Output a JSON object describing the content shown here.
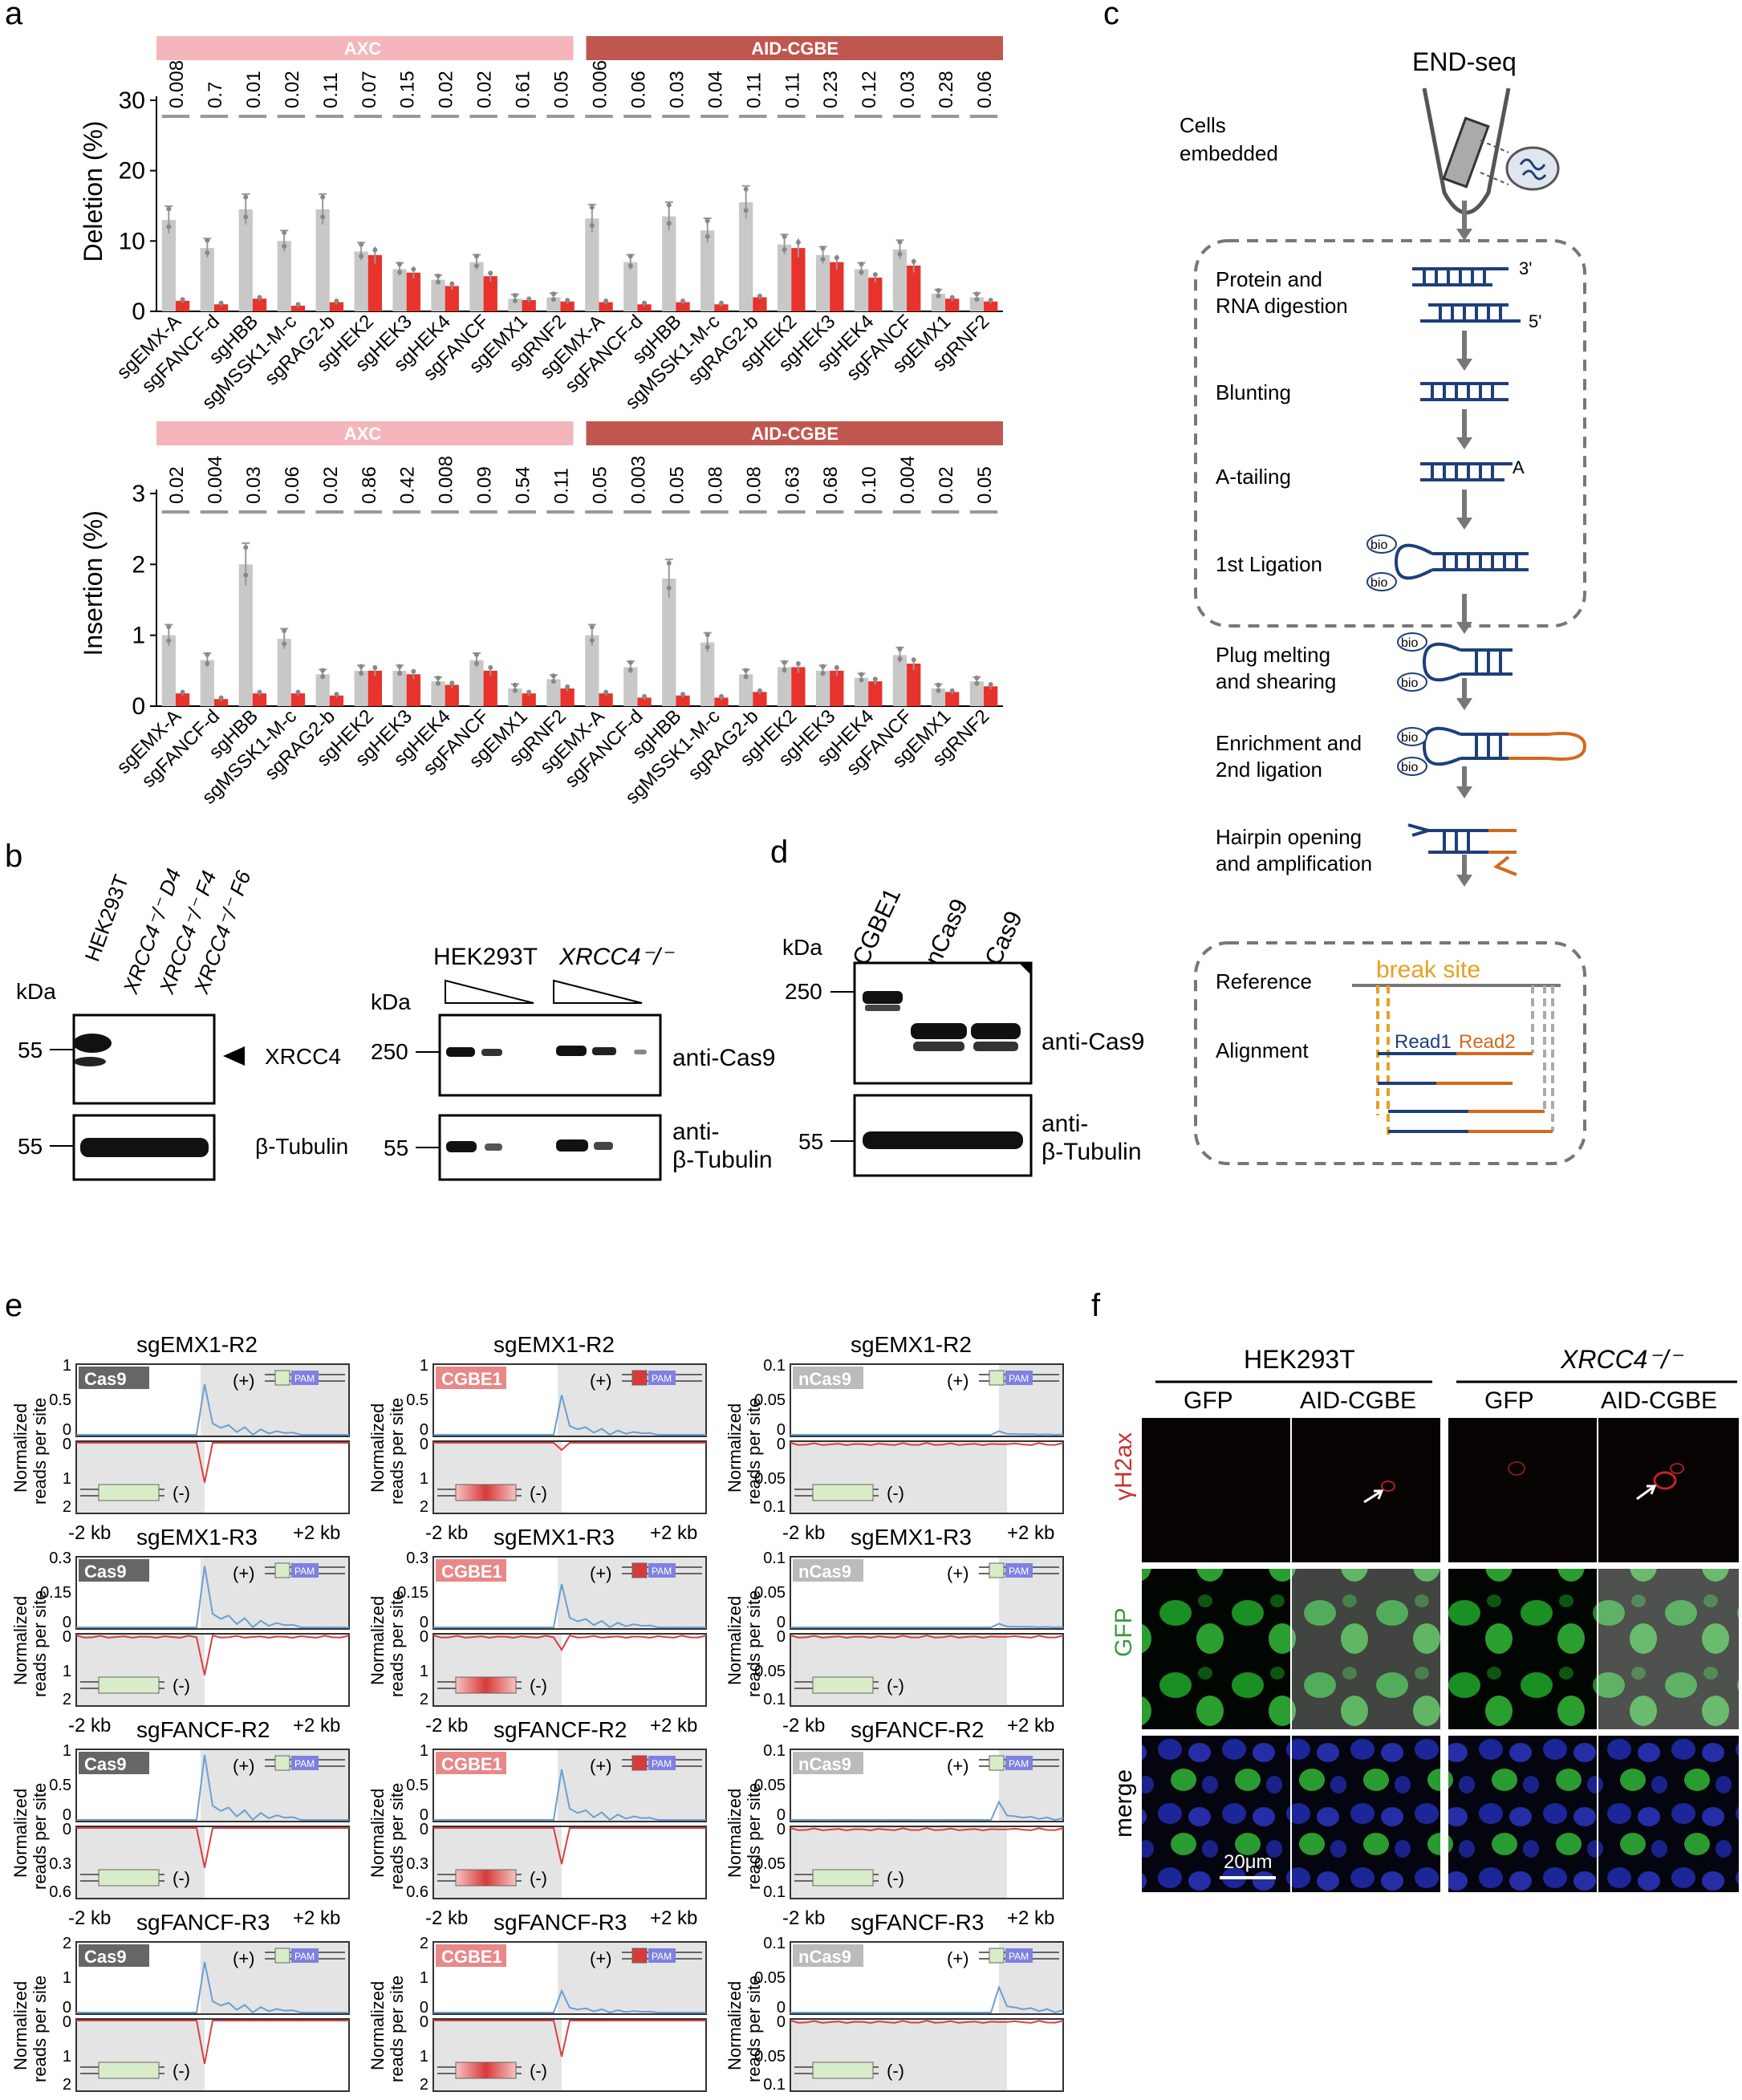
{
  "panel_labels": {
    "a": "a",
    "b": "b",
    "c": "c",
    "d": "d",
    "e": "e",
    "f": "f"
  },
  "colors": {
    "axc": "#f4b6bb",
    "aidcgbe": "#c0574e",
    "gray_bar": "#c8c8c8",
    "red_bar": "#e8322c",
    "blue": "#1f3f7a",
    "orange": "#d2691e",
    "gold": "#e8a020",
    "signal_blue": "#6a9fd4",
    "signal_red": "#d94040"
  },
  "panel_a": {
    "group_labels": [
      "AXC",
      "AID-CGBE"
    ],
    "sg_labels": [
      "sgEMX-A",
      "sgFANCF-d",
      "sgHBB",
      "sgMSSK1-M-c",
      "sgRAG2-b",
      "sgHEK2",
      "sgHEK3",
      "sgHEK4",
      "sgFANCF",
      "sgEMX1",
      "sgRNF2"
    ]
  },
  "chart_data": [
    {
      "type": "bar",
      "ylabel": "Deletion (%)",
      "ylim": [
        0,
        30
      ],
      "yticks": [
        "0",
        "10",
        "20",
        "30"
      ],
      "categories": [
        "sgEMX-A",
        "sgFANCF-d",
        "sgHBB",
        "sgMSSK1-M-c",
        "sgRAG2-b",
        "sgHEK2",
        "sgHEK3",
        "sgHEK4",
        "sgFANCF",
        "sgEMX1",
        "sgRNF2",
        "sgEMX-A",
        "sgFANCF-d",
        "sgHBB",
        "sgMSSK1-M-c",
        "sgRAG2-b",
        "sgHEK2",
        "sgHEK3",
        "sgHEK4",
        "sgFANCF",
        "sgEMX1",
        "sgRNF2"
      ],
      "p_values": [
        "0.008",
        "0.7",
        "0.01",
        "0.02",
        "0.11",
        "0.07",
        "0.15",
        "0.02",
        "0.02",
        "0.61",
        "0.05",
        "0.006",
        "0.06",
        "0.03",
        "0.04",
        "0.11",
        "0.11",
        "0.23",
        "0.12",
        "0.03",
        "0.28",
        "0.06"
      ],
      "series": [
        {
          "values": [
            13,
            9,
            14.5,
            10,
            14.5,
            8.5,
            6,
            4.5,
            7,
            1.8,
            2,
            13.2,
            7,
            13.5,
            11.5,
            15.5,
            9.5,
            8,
            6,
            8.8,
            2.5,
            2
          ]
        },
        {
          "values": [
            1.5,
            1,
            1.8,
            0.8,
            1.3,
            8,
            5.5,
            3.6,
            5,
            1.6,
            1.4,
            1.3,
            1,
            1.3,
            1,
            2,
            9,
            7,
            4.8,
            6.5,
            1.8,
            1.4
          ]
        }
      ]
    },
    {
      "type": "bar",
      "ylabel": "Insertion (%)",
      "ylim": [
        0,
        3
      ],
      "yticks": [
        "0",
        "1",
        "2",
        "3"
      ],
      "categories": [
        "sgEMX-A",
        "sgFANCF-d",
        "sgHBB",
        "sgMSSK1-M-c",
        "sgRAG2-b",
        "sgHEK2",
        "sgHEK3",
        "sgHEK4",
        "sgFANCF",
        "sgEMX1",
        "sgRNF2",
        "sgEMX-A",
        "sgFANCF-d",
        "sgHBB",
        "sgMSSK1-M-c",
        "sgRAG2-b",
        "sgHEK2",
        "sgHEK3",
        "sgHEK4",
        "sgFANCF",
        "sgEMX1",
        "sgRNF2"
      ],
      "p_values": [
        "0.02",
        "0.004",
        "0.03",
        "0.06",
        "0.02",
        "0.86",
        "0.42",
        "0.008",
        "0.09",
        "0.54",
        "0.11",
        "0.05",
        "0.003",
        "0.05",
        "0.08",
        "0.08",
        "0.63",
        "0.68",
        "0.10",
        "0.004",
        "0.02",
        "0.05"
      ],
      "series": [
        {
          "values": [
            1,
            0.65,
            2,
            0.95,
            0.45,
            0.5,
            0.5,
            0.35,
            0.65,
            0.25,
            0.38,
            1,
            0.55,
            1.8,
            0.9,
            0.45,
            0.55,
            0.5,
            0.4,
            0.72,
            0.25,
            0.35
          ]
        },
        {
          "values": [
            0.18,
            0.1,
            0.18,
            0.18,
            0.15,
            0.5,
            0.45,
            0.3,
            0.5,
            0.18,
            0.25,
            0.18,
            0.12,
            0.15,
            0.12,
            0.2,
            0.55,
            0.5,
            0.35,
            0.6,
            0.2,
            0.28
          ]
        }
      ]
    }
  ],
  "panel_b": {
    "kda": "kDa",
    "lanes": [
      "HEK293T",
      "XRCC4⁻/⁻ D4",
      "XRCC4⁻/⁻ F4",
      "XRCC4⁻/⁻ F6"
    ],
    "marker_55": "55",
    "xrcc4": "XRCC4",
    "tubulin": "β-Tubulin",
    "right_hek": "HEK293T",
    "right_xrcc4": "XRCC4⁻/⁻",
    "marker_250": "250",
    "anti_cas9": "anti-Cas9",
    "anti_tub_1": "anti-",
    "anti_tub_2": "β-Tubulin"
  },
  "panel_c": {
    "title": "END-seq",
    "cells": "Cells",
    "embedded": "embedded",
    "steps": [
      "Protein and",
      "RNA digestion",
      "Blunting",
      "A-tailing",
      "1st Ligation",
      "Plug melting",
      "and shearing",
      "Enrichment and",
      "2nd ligation",
      "Hairpin opening",
      "and amplification"
    ],
    "three_prime": "3'",
    "five_prime": "5'",
    "a_label": "A",
    "bio": "bio",
    "reference": "Reference",
    "alignment": "Alignment",
    "break_site": "break site",
    "read1": "Read1",
    "read2": "Read2"
  },
  "panel_d": {
    "kda": "kDa",
    "lanes": [
      "CGBE1",
      "nCas9",
      "Cas9"
    ],
    "marker_250": "250",
    "marker_55": "55",
    "anti_cas9": "anti-Cas9",
    "anti_tub_1": "anti-",
    "anti_tub_2": "β-Tubulin"
  },
  "panel_e": {
    "ylabel_1": "Normalized",
    "ylabel_2": "reads per site",
    "x_left": "-2 kb",
    "x_right": "+2 kb",
    "plus": "(+)",
    "minus": "(-)",
    "pam": "PAM",
    "rows": [
      {
        "title": "sgEMX1-R2",
        "ticks": [
          [
            "1",
            "0.5",
            "0",
            "0",
            "1",
            "2"
          ],
          [
            "1",
            "0.5",
            "0",
            "0",
            "1",
            "2"
          ],
          [
            "0.1",
            "0.05",
            "0",
            "0",
            "0.05",
            "0.1"
          ]
        ]
      },
      {
        "title": "sgEMX1-R3",
        "ticks": [
          [
            "0.3",
            "0.15",
            "0",
            "0",
            "1",
            "2"
          ],
          [
            "0.3",
            "0.15",
            "0",
            "0",
            "1",
            "2"
          ],
          [
            "0.1",
            "0.05",
            "0",
            "0",
            "0.05",
            "0.1"
          ]
        ]
      },
      {
        "title": "sgFANCF-R2",
        "ticks": [
          [
            "1",
            "0.5",
            "0",
            "0",
            "0.3",
            "0.6"
          ],
          [
            "1",
            "0.5",
            "0",
            "0",
            "0.3",
            "0.6"
          ],
          [
            "0.1",
            "0.05",
            "0",
            "0",
            "0.05",
            "0.1"
          ]
        ]
      },
      {
        "title": "sgFANCF-R3",
        "ticks": [
          [
            "2",
            "1",
            "0",
            "0",
            "1",
            "2"
          ],
          [
            "2",
            "1",
            "0",
            "0",
            "1",
            "2"
          ],
          [
            "0.1",
            "0.05",
            "0",
            "0",
            "0.05",
            "0.1"
          ]
        ]
      }
    ],
    "enzymes": [
      "Cas9",
      "CGBE1",
      "nCas9"
    ]
  },
  "panel_f": {
    "hek": "HEK293T",
    "xrcc4": "XRCC4⁻/⁻",
    "gfp": "GFP",
    "aid": "AID-CGBE",
    "row_h2ax": "γH2ax",
    "row_gfp": "GFP",
    "row_merge": "merge",
    "scale": "20μm"
  }
}
